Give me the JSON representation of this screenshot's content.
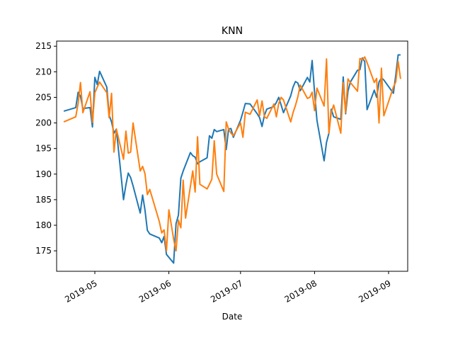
{
  "chart_data": {
    "type": "line",
    "title": "KNN",
    "xlabel": "Date",
    "ylabel": "",
    "ylim": [
      171,
      216
    ],
    "xlim": [
      "2019-04-15",
      "2019-09-09"
    ],
    "yticks": [
      175,
      180,
      185,
      190,
      195,
      200,
      205,
      210,
      215
    ],
    "xticks": [
      "2019-05",
      "2019-06",
      "2019-07",
      "2019-08",
      "2019-09"
    ],
    "xtick_dates": [
      "2019-05-01",
      "2019-06-01",
      "2019-07-01",
      "2019-08-01",
      "2019-09-01"
    ],
    "grid": false,
    "legend": "none",
    "series": [
      {
        "name": "",
        "color": "#1f77b4",
        "points": [
          [
            "2019-04-18",
            202.3
          ],
          [
            "2019-04-23",
            203.0
          ],
          [
            "2019-04-24",
            206.0
          ],
          [
            "2019-04-25",
            205.2
          ],
          [
            "2019-04-26",
            202.8
          ],
          [
            "2019-04-29",
            203.0
          ],
          [
            "2019-04-30",
            199.2
          ],
          [
            "2019-05-01",
            208.9
          ],
          [
            "2019-05-02",
            207.5
          ],
          [
            "2019-05-03",
            210.1
          ],
          [
            "2019-05-06",
            207.0
          ],
          [
            "2019-05-07",
            201.5
          ],
          [
            "2019-05-08",
            200.2
          ],
          [
            "2019-05-09",
            198.0
          ],
          [
            "2019-05-10",
            198.8
          ],
          [
            "2019-05-13",
            185.0
          ],
          [
            "2019-05-14",
            187.9
          ],
          [
            "2019-05-15",
            190.2
          ],
          [
            "2019-05-16",
            189.3
          ],
          [
            "2019-05-17",
            187.7
          ],
          [
            "2019-05-20",
            182.4
          ],
          [
            "2019-05-21",
            185.9
          ],
          [
            "2019-05-22",
            183.0
          ],
          [
            "2019-05-23",
            179.0
          ],
          [
            "2019-05-24",
            178.3
          ],
          [
            "2019-05-28",
            177.5
          ],
          [
            "2019-05-29",
            176.6
          ],
          [
            "2019-05-30",
            177.8
          ],
          [
            "2019-05-31",
            174.3
          ],
          [
            "2019-06-03",
            172.6
          ],
          [
            "2019-06-04",
            180.3
          ],
          [
            "2019-06-05",
            182.0
          ],
          [
            "2019-06-06",
            189.2
          ],
          [
            "2019-06-07",
            190.6
          ],
          [
            "2019-06-10",
            194.2
          ],
          [
            "2019-06-11",
            193.6
          ],
          [
            "2019-06-12",
            193.3
          ],
          [
            "2019-06-13",
            192.0
          ],
          [
            "2019-06-14",
            192.4
          ],
          [
            "2019-06-17",
            193.2
          ],
          [
            "2019-06-18",
            197.5
          ],
          [
            "2019-06-19",
            197.0
          ],
          [
            "2019-06-20",
            198.7
          ],
          [
            "2019-06-21",
            198.3
          ],
          [
            "2019-06-24",
            198.7
          ],
          [
            "2019-06-25",
            194.8
          ],
          [
            "2019-06-26",
            198.8
          ],
          [
            "2019-06-27",
            198.9
          ],
          [
            "2019-06-28",
            197.2
          ],
          [
            "2019-07-01",
            200.5
          ],
          [
            "2019-07-02",
            202.1
          ],
          [
            "2019-07-03",
            203.8
          ],
          [
            "2019-07-05",
            203.7
          ],
          [
            "2019-07-08",
            201.8
          ],
          [
            "2019-07-09",
            201.0
          ],
          [
            "2019-07-10",
            199.3
          ],
          [
            "2019-07-11",
            201.5
          ],
          [
            "2019-07-12",
            202.7
          ],
          [
            "2019-07-15",
            203.2
          ],
          [
            "2019-07-16",
            204.0
          ],
          [
            "2019-07-17",
            205.0
          ],
          [
            "2019-07-18",
            203.5
          ],
          [
            "2019-07-19",
            202.0
          ],
          [
            "2019-07-22",
            205.3
          ],
          [
            "2019-07-23",
            207.0
          ],
          [
            "2019-07-24",
            208.1
          ],
          [
            "2019-07-25",
            207.8
          ],
          [
            "2019-07-26",
            206.3
          ],
          [
            "2019-07-29",
            208.9
          ],
          [
            "2019-07-30",
            208.0
          ],
          [
            "2019-07-31",
            212.2
          ],
          [
            "2019-08-01",
            206.0
          ],
          [
            "2019-08-02",
            200.5
          ],
          [
            "2019-08-05",
            192.6
          ],
          [
            "2019-08-06",
            196.2
          ],
          [
            "2019-08-07",
            198.0
          ],
          [
            "2019-08-08",
            202.7
          ],
          [
            "2019-08-09",
            201.2
          ],
          [
            "2019-08-12",
            200.7
          ],
          [
            "2019-08-13",
            209.0
          ],
          [
            "2019-08-14",
            201.8
          ],
          [
            "2019-08-15",
            206.2
          ],
          [
            "2019-08-16",
            208.0
          ],
          [
            "2019-08-19",
            210.3
          ],
          [
            "2019-08-20",
            210.4
          ],
          [
            "2019-08-21",
            212.7
          ],
          [
            "2019-08-22",
            212.0
          ],
          [
            "2019-08-23",
            202.6
          ],
          [
            "2019-08-26",
            206.4
          ],
          [
            "2019-08-27",
            205.0
          ],
          [
            "2019-08-28",
            208.0
          ],
          [
            "2019-08-29",
            208.8
          ],
          [
            "2019-08-30",
            208.4
          ],
          [
            "2019-09-03",
            205.8
          ],
          [
            "2019-09-04",
            209.3
          ],
          [
            "2019-09-05",
            213.3
          ],
          [
            "2019-09-06",
            213.3
          ]
        ]
      },
      {
        "name": "",
        "color": "#ff7f0e",
        "points": [
          [
            "2019-04-18",
            200.2
          ],
          [
            "2019-04-23",
            201.2
          ],
          [
            "2019-04-24",
            203.8
          ],
          [
            "2019-04-25",
            207.9
          ],
          [
            "2019-04-26",
            202.0
          ],
          [
            "2019-04-29",
            206.1
          ],
          [
            "2019-04-30",
            200.1
          ],
          [
            "2019-05-01",
            205.9
          ],
          [
            "2019-05-02",
            207.0
          ],
          [
            "2019-05-03",
            208.0
          ],
          [
            "2019-05-06",
            205.9
          ],
          [
            "2019-05-07",
            201.0
          ],
          [
            "2019-05-08",
            205.8
          ],
          [
            "2019-05-09",
            194.3
          ],
          [
            "2019-05-10",
            198.8
          ],
          [
            "2019-05-13",
            192.9
          ],
          [
            "2019-05-14",
            198.4
          ],
          [
            "2019-05-15",
            194.1
          ],
          [
            "2019-05-16",
            194.3
          ],
          [
            "2019-05-17",
            200.0
          ],
          [
            "2019-05-20",
            190.6
          ],
          [
            "2019-05-21",
            191.5
          ],
          [
            "2019-05-22",
            190.1
          ],
          [
            "2019-05-23",
            186.0
          ],
          [
            "2019-05-24",
            187.0
          ],
          [
            "2019-05-28",
            180.7
          ],
          [
            "2019-05-29",
            178.5
          ],
          [
            "2019-05-30",
            179.1
          ],
          [
            "2019-05-31",
            175.0
          ],
          [
            "2019-06-01",
            183.0
          ],
          [
            "2019-06-03",
            177.3
          ],
          [
            "2019-06-04",
            175.0
          ],
          [
            "2019-06-05",
            181.0
          ],
          [
            "2019-06-06",
            179.5
          ],
          [
            "2019-06-07",
            188.8
          ],
          [
            "2019-06-08",
            181.4
          ],
          [
            "2019-06-11",
            190.6
          ],
          [
            "2019-06-12",
            186.5
          ],
          [
            "2019-06-13",
            197.3
          ],
          [
            "2019-06-14",
            188.0
          ],
          [
            "2019-06-17",
            187.1
          ],
          [
            "2019-06-18",
            188.0
          ],
          [
            "2019-06-19",
            189.0
          ],
          [
            "2019-06-20",
            196.5
          ],
          [
            "2019-06-21",
            190.0
          ],
          [
            "2019-06-24",
            186.6
          ],
          [
            "2019-06-25",
            200.2
          ],
          [
            "2019-06-26",
            198.8
          ],
          [
            "2019-06-27",
            198.0
          ],
          [
            "2019-06-28",
            197.5
          ],
          [
            "2019-07-01",
            200.0
          ],
          [
            "2019-07-02",
            197.2
          ],
          [
            "2019-07-03",
            202.1
          ],
          [
            "2019-07-05",
            201.7
          ],
          [
            "2019-07-08",
            204.5
          ],
          [
            "2019-07-09",
            201.4
          ],
          [
            "2019-07-10",
            204.3
          ],
          [
            "2019-07-11",
            201.2
          ],
          [
            "2019-07-12",
            200.9
          ],
          [
            "2019-07-15",
            203.7
          ],
          [
            "2019-07-16",
            201.2
          ],
          [
            "2019-07-17",
            203.8
          ],
          [
            "2019-07-18",
            205.0
          ],
          [
            "2019-07-19",
            204.5
          ],
          [
            "2019-07-22",
            200.2
          ],
          [
            "2019-07-23",
            202.0
          ],
          [
            "2019-07-24",
            203.4
          ],
          [
            "2019-07-25",
            205.1
          ],
          [
            "2019-07-26",
            207.4
          ],
          [
            "2019-07-29",
            204.8
          ],
          [
            "2019-07-30",
            205.0
          ],
          [
            "2019-07-31",
            206.0
          ],
          [
            "2019-08-01",
            202.4
          ],
          [
            "2019-08-02",
            206.8
          ],
          [
            "2019-08-05",
            203.3
          ],
          [
            "2019-08-06",
            212.5
          ],
          [
            "2019-08-07",
            198.0
          ],
          [
            "2019-08-08",
            202.0
          ],
          [
            "2019-08-09",
            203.5
          ],
          [
            "2019-08-12",
            198.0
          ],
          [
            "2019-08-13",
            207.9
          ],
          [
            "2019-08-14",
            202.0
          ],
          [
            "2019-08-15",
            208.6
          ],
          [
            "2019-08-16",
            207.9
          ],
          [
            "2019-08-19",
            206.2
          ],
          [
            "2019-08-20",
            212.6
          ],
          [
            "2019-08-21",
            212.4
          ],
          [
            "2019-08-22",
            212.9
          ],
          [
            "2019-08-23",
            211.8
          ],
          [
            "2019-08-26",
            207.9
          ],
          [
            "2019-08-27",
            208.7
          ],
          [
            "2019-08-28",
            200.0
          ],
          [
            "2019-08-29",
            210.7
          ],
          [
            "2019-08-30",
            201.4
          ],
          [
            "2019-09-03",
            207.0
          ],
          [
            "2019-09-04",
            208.0
          ],
          [
            "2019-09-05",
            212.0
          ],
          [
            "2019-09-06",
            208.6
          ]
        ]
      }
    ]
  }
}
